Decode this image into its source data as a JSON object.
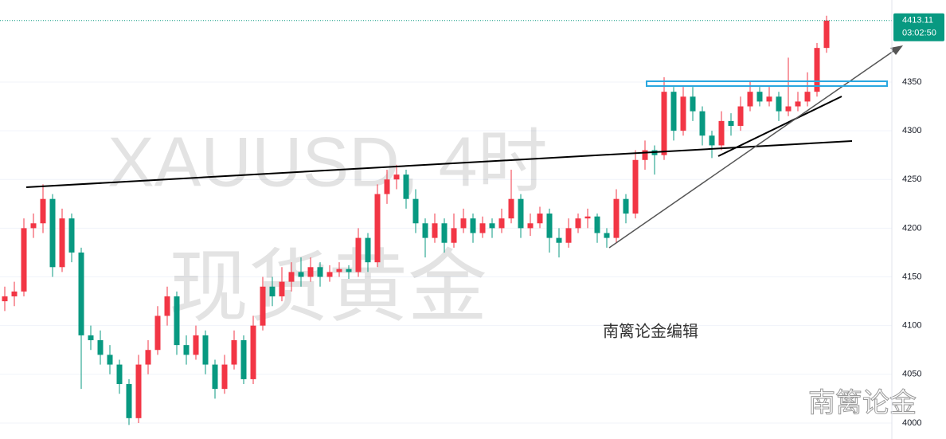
{
  "chart_data": {
    "type": "candlestick",
    "watermark": [
      "XAUUSD, 4时",
      "现货黄金"
    ],
    "annotation": "南篱论金编辑",
    "corner_mark": "南篱论金",
    "last_price": 4413.11,
    "countdown": "03:02:50",
    "up_color": "#f23645",
    "down_color": "#089981",
    "grid": true,
    "ylim": [
      3983.6,
      4434.2
    ],
    "yticks": [
      4000,
      4050,
      4100,
      4150,
      4200,
      4250,
      4300,
      4350
    ],
    "ohlc": [
      [
        4125,
        4140,
        4115,
        4130
      ],
      [
        4130,
        4145,
        4120,
        4135
      ],
      [
        4135,
        4210,
        4130,
        4200
      ],
      [
        4200,
        4215,
        4190,
        4205
      ],
      [
        4205,
        4245,
        4195,
        4230
      ],
      [
        4230,
        4235,
        4150,
        4160
      ],
      [
        4160,
        4220,
        4155,
        4210
      ],
      [
        4210,
        4215,
        4165,
        4175
      ],
      [
        4175,
        4180,
        4035,
        4090
      ],
      [
        4090,
        4100,
        4075,
        4085
      ],
      [
        4085,
        4095,
        4060,
        4070
      ],
      [
        4070,
        4080,
        4050,
        4060
      ],
      [
        4060,
        4065,
        4030,
        4040
      ],
      [
        4040,
        4045,
        3998,
        4005
      ],
      [
        4005,
        4070,
        4000,
        4060
      ],
      [
        4060,
        4085,
        4050,
        4075
      ],
      [
        4075,
        4120,
        4070,
        4110
      ],
      [
        4110,
        4140,
        4100,
        4130
      ],
      [
        4130,
        4135,
        4070,
        4080
      ],
      [
        4080,
        4090,
        4060,
        4070
      ],
      [
        4070,
        4100,
        4065,
        4090
      ],
      [
        4090,
        4095,
        4050,
        4060
      ],
      [
        4060,
        4065,
        4025,
        4035
      ],
      [
        4035,
        4070,
        4030,
        4060
      ],
      [
        4060,
        4095,
        4055,
        4085
      ],
      [
        4085,
        4090,
        4040,
        4045
      ],
      [
        4045,
        4110,
        4040,
        4100
      ],
      [
        4100,
        4150,
        4095,
        4140
      ],
      [
        4140,
        4150,
        4120,
        4130
      ],
      [
        4130,
        4160,
        4125,
        4145
      ],
      [
        4145,
        4165,
        4135,
        4155
      ],
      [
        4155,
        4170,
        4140,
        4150
      ],
      [
        4150,
        4170,
        4145,
        4160
      ],
      [
        4160,
        4165,
        4140,
        4150
      ],
      [
        4150,
        4162,
        4145,
        4155
      ],
      [
        4155,
        4165,
        4150,
        4158
      ],
      [
        4158,
        4162,
        4148,
        4155
      ],
      [
        4155,
        4200,
        4150,
        4190
      ],
      [
        4190,
        4195,
        4155,
        4165
      ],
      [
        4165,
        4245,
        4160,
        4235
      ],
      [
        4235,
        4260,
        4225,
        4250
      ],
      [
        4250,
        4265,
        4240,
        4255
      ],
      [
        4255,
        4260,
        4220,
        4230
      ],
      [
        4230,
        4240,
        4195,
        4205
      ],
      [
        4205,
        4210,
        4170,
        4190
      ],
      [
        4190,
        4215,
        4185,
        4205
      ],
      [
        4205,
        4210,
        4175,
        4185
      ],
      [
        4185,
        4215,
        4180,
        4200
      ],
      [
        4200,
        4220,
        4195,
        4210
      ],
      [
        4210,
        4215,
        4185,
        4195
      ],
      [
        4195,
        4212,
        4190,
        4205
      ],
      [
        4205,
        4210,
        4190,
        4200
      ],
      [
        4200,
        4220,
        4195,
        4210
      ],
      [
        4210,
        4260,
        4205,
        4230
      ],
      [
        4230,
        4235,
        4190,
        4200
      ],
      [
        4200,
        4215,
        4192,
        4205
      ],
      [
        4205,
        4222,
        4200,
        4215
      ],
      [
        4215,
        4220,
        4175,
        4190
      ],
      [
        4190,
        4200,
        4170,
        4185
      ],
      [
        4185,
        4210,
        4180,
        4200
      ],
      [
        4200,
        4215,
        4195,
        4210
      ],
      [
        4210,
        4220,
        4200,
        4212
      ],
      [
        4212,
        4215,
        4185,
        4195
      ],
      [
        4195,
        4200,
        4180,
        4190
      ],
      [
        4190,
        4240,
        4185,
        4230
      ],
      [
        4230,
        4235,
        4205,
        4215
      ],
      [
        4215,
        4280,
        4210,
        4270
      ],
      [
        4270,
        4290,
        4260,
        4280
      ],
      [
        4280,
        4285,
        4255,
        4275
      ],
      [
        4275,
        4355,
        4270,
        4340
      ],
      [
        4340,
        4345,
        4290,
        4300
      ],
      [
        4300,
        4345,
        4295,
        4335
      ],
      [
        4335,
        4345,
        4310,
        4320
      ],
      [
        4320,
        4325,
        4285,
        4295
      ],
      [
        4295,
        4300,
        4272,
        4285
      ],
      [
        4285,
        4320,
        4280,
        4310
      ],
      [
        4310,
        4318,
        4295,
        4305
      ],
      [
        4305,
        4335,
        4300,
        4325
      ],
      [
        4325,
        4350,
        4320,
        4340
      ],
      [
        4340,
        4345,
        4325,
        4330
      ],
      [
        4330,
        4345,
        4325,
        4335
      ],
      [
        4335,
        4340,
        4310,
        4320
      ],
      [
        4320,
        4375,
        4315,
        4325
      ],
      [
        4325,
        4340,
        4320,
        4330
      ],
      [
        4330,
        4360,
        4325,
        4340
      ],
      [
        4340,
        4390,
        4335,
        4385
      ],
      [
        4385,
        4418,
        4380,
        4413.11
      ]
    ]
  }
}
